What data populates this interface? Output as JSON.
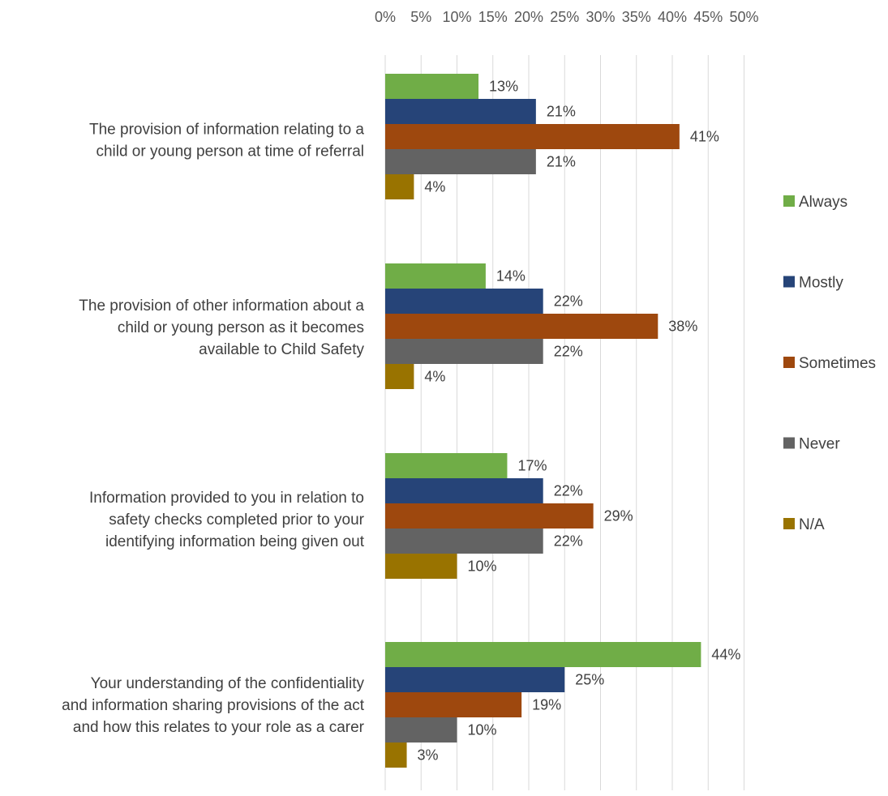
{
  "chart_data": {
    "type": "bar",
    "orientation": "horizontal",
    "categories": [
      [
        "The provision of information relating to a",
        "child or young person at time of referral"
      ],
      [
        "The provision of other information about a",
        "child or young person as it becomes",
        "available to Child Safety"
      ],
      [
        "Information provided to you in relation to",
        "safety checks completed prior to your",
        "identifying information being given out"
      ],
      [
        "Your understanding of the confidentiality",
        "and information sharing provisions of the act",
        "and how this relates to your role as a carer"
      ]
    ],
    "series": [
      {
        "name": "Always",
        "color": "#70AD47",
        "values": [
          13,
          14,
          17,
          44
        ],
        "labels": [
          "13%",
          "14%",
          "17%",
          "44%"
        ]
      },
      {
        "name": "Mostly",
        "color": "#264478",
        "values": [
          21,
          22,
          22,
          25
        ],
        "labels": [
          "21%",
          "22%",
          "22%",
          "25%"
        ]
      },
      {
        "name": "Sometimes",
        "color": "#9E480E",
        "values": [
          41,
          38,
          29,
          19
        ],
        "labels": [
          "41%",
          "38%",
          "29%",
          "19%"
        ]
      },
      {
        "name": "Never",
        "color": "#636363",
        "values": [
          21,
          22,
          22,
          10
        ],
        "labels": [
          "21%",
          "22%",
          "22%",
          "10%"
        ]
      },
      {
        "name": "N/A",
        "color": "#997300",
        "values": [
          4,
          4,
          10,
          3
        ],
        "labels": [
          "4%",
          "4%",
          "10%",
          "3%"
        ]
      }
    ],
    "x_ticks": [
      "0%",
      "5%",
      "10%",
      "15%",
      "20%",
      "25%",
      "30%",
      "35%",
      "40%",
      "45%",
      "50%"
    ],
    "xlim": [
      0,
      50
    ],
    "x_axis_position": "top",
    "grid": true,
    "legend_position": "right",
    "title": "",
    "xlabel": "",
    "ylabel": ""
  }
}
